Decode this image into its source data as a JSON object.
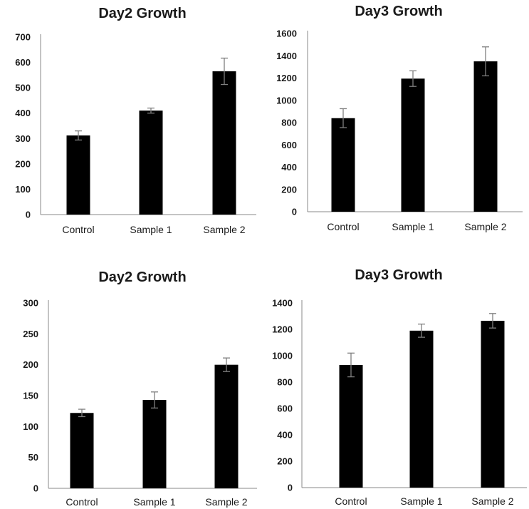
{
  "chart_data": [
    {
      "type": "bar",
      "title": "Day2 Growth",
      "categories": [
        "Control",
        "Sample 1",
        "Sample 2"
      ],
      "values": [
        312,
        410,
        565
      ],
      "errors": [
        18,
        10,
        52
      ],
      "ylim": [
        0,
        700
      ],
      "yticks": [
        "0",
        "100",
        "200",
        "300",
        "400",
        "500",
        "600",
        "700"
      ],
      "bar_color": "#000000",
      "error_color": "#7f7f7f",
      "grid": false
    },
    {
      "type": "bar",
      "title": "Day3 Growth",
      "categories": [
        "Control",
        "Sample 1",
        "Sample 2"
      ],
      "values": [
        840,
        1195,
        1350
      ],
      "errors": [
        85,
        70,
        130
      ],
      "ylim": [
        0,
        1600
      ],
      "yticks": [
        "0",
        "200",
        "400",
        "600",
        "800",
        "1000",
        "1200",
        "1400",
        "1600"
      ],
      "bar_color": "#000000",
      "error_color": "#7f7f7f",
      "grid": false
    },
    {
      "type": "bar",
      "title": "Day2 Growth",
      "categories": [
        "Control",
        "Sample 1",
        "Sample 2"
      ],
      "values": [
        122,
        143,
        200
      ],
      "errors": [
        6,
        13,
        11
      ],
      "ylim": [
        0,
        300
      ],
      "yticks": [
        "0",
        "50",
        "100",
        "150",
        "200",
        "250",
        "300"
      ],
      "bar_color": "#000000",
      "error_color": "#7f7f7f",
      "grid": false
    },
    {
      "type": "bar",
      "title": "Day3 Growth",
      "categories": [
        "Control",
        "Sample 1",
        "Sample 2"
      ],
      "values": [
        930,
        1190,
        1265
      ],
      "errors": [
        90,
        50,
        55
      ],
      "ylim": [
        0,
        1400
      ],
      "yticks": [
        "0",
        "200",
        "400",
        "600",
        "800",
        "1000",
        "1200",
        "1400"
      ],
      "bar_color": "#000000",
      "error_color": "#7f7f7f",
      "grid": false
    }
  ]
}
